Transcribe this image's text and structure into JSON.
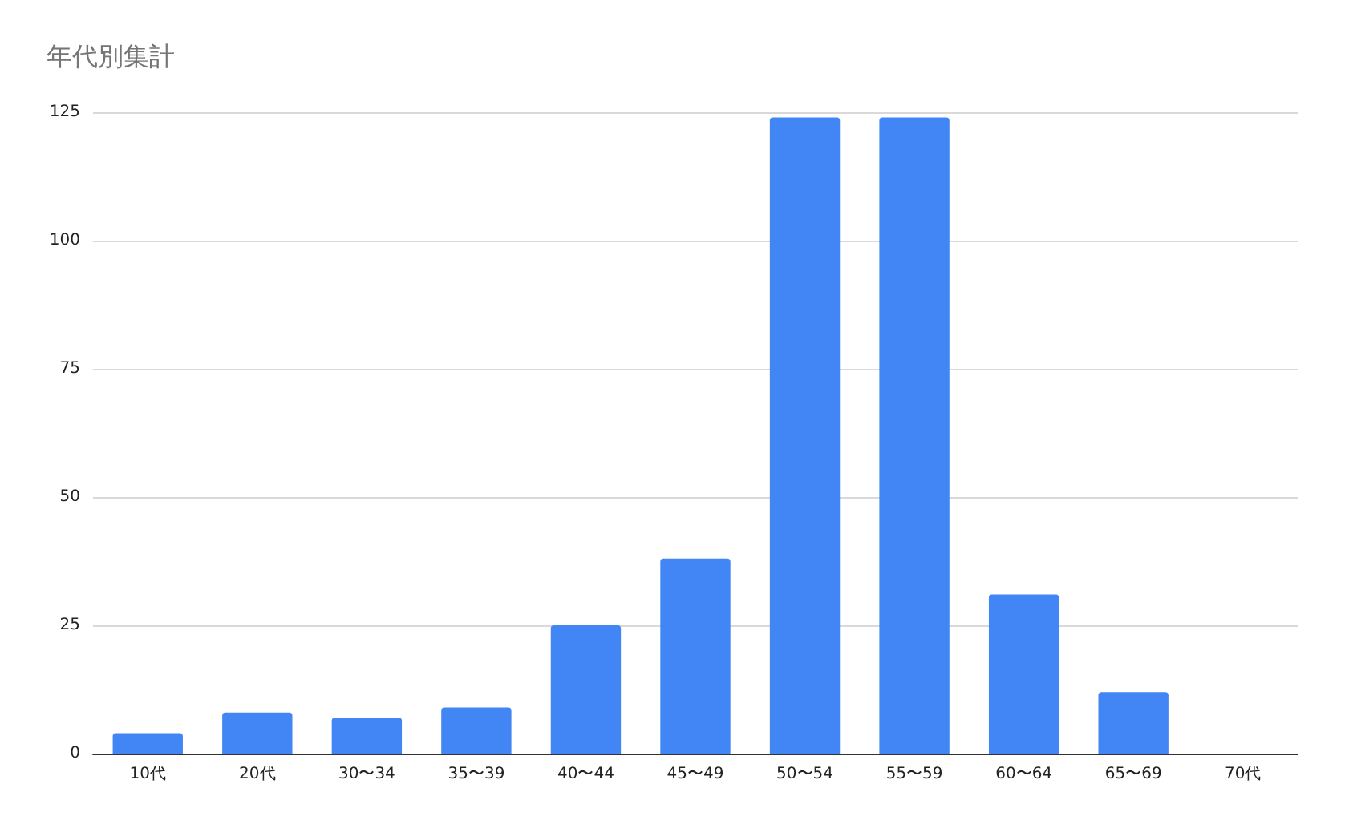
{
  "chart_data": {
    "type": "bar",
    "title": "年代別集計",
    "categories": [
      "10代",
      "20代",
      "30〜34",
      "35〜39",
      "40〜44",
      "45〜49",
      "50〜54",
      "55〜59",
      "60〜64",
      "65〜69",
      "70代"
    ],
    "values": [
      4,
      8,
      7,
      9,
      25,
      38,
      124,
      124,
      31,
      12,
      0
    ],
    "color": "#4285f4",
    "ylim": [
      0,
      125
    ],
    "yticks": [
      0,
      25,
      50,
      75,
      100,
      125
    ],
    "grid": "y"
  }
}
